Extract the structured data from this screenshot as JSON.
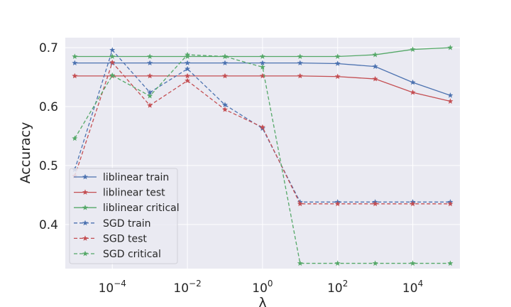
{
  "chart_data": {
    "type": "line",
    "title": "",
    "xlabel": "λ",
    "ylabel": "Accuracy",
    "xscale": "log",
    "x": [
      1e-05,
      0.0001,
      0.001,
      0.01,
      0.1,
      1,
      10,
      100,
      1000,
      10000,
      100000
    ],
    "xlim": [
      5.6e-06,
      180000
    ],
    "ylim": [
      0.325,
      0.717
    ],
    "x_ticks": [
      {
        "base": "10",
        "exp": "−4",
        "value": 0.0001
      },
      {
        "base": "10",
        "exp": "−2",
        "value": 0.01
      },
      {
        "base": "10",
        "exp": "0",
        "value": 1
      },
      {
        "base": "10",
        "exp": "2",
        "value": 100
      },
      {
        "base": "10",
        "exp": "4",
        "value": 10000
      }
    ],
    "y_ticks": [
      {
        "label": "0.4",
        "value": 0.4
      },
      {
        "label": "0.5",
        "value": 0.5
      },
      {
        "label": "0.6",
        "value": 0.6
      },
      {
        "label": "0.7",
        "value": 0.7
      }
    ],
    "grid": true,
    "legend_position": "lower-left",
    "background": "#eaeaf2",
    "series": [
      {
        "name": "liblinear train",
        "color": "#4c72b0",
        "linestyle": "solid",
        "marker": "star",
        "values": [
          0.674,
          0.674,
          0.674,
          0.674,
          0.674,
          0.674,
          0.674,
          0.673,
          0.668,
          0.641,
          0.619
        ]
      },
      {
        "name": "liblinear test",
        "color": "#c44e52",
        "linestyle": "solid",
        "marker": "star",
        "values": [
          0.652,
          0.652,
          0.652,
          0.652,
          0.652,
          0.652,
          0.652,
          0.651,
          0.647,
          0.624,
          0.609
        ]
      },
      {
        "name": "liblinear critical",
        "color": "#55a868",
        "linestyle": "solid",
        "marker": "star",
        "values": [
          0.685,
          0.685,
          0.685,
          0.685,
          0.685,
          0.685,
          0.685,
          0.685,
          0.688,
          0.697,
          0.7
        ]
      },
      {
        "name": "SGD train",
        "color": "#4c72b0",
        "linestyle": "dashed",
        "marker": "star",
        "values": [
          0.493,
          0.696,
          0.624,
          0.664,
          0.603,
          0.563,
          0.438,
          0.438,
          0.438,
          0.438,
          0.438
        ]
      },
      {
        "name": "SGD test",
        "color": "#c44e52",
        "linestyle": "dashed",
        "marker": "star",
        "values": [
          0.482,
          0.675,
          0.602,
          0.644,
          0.595,
          0.565,
          0.435,
          0.435,
          0.435,
          0.435,
          0.435
        ]
      },
      {
        "name": "SGD critical",
        "color": "#55a868",
        "linestyle": "dashed",
        "marker": "star",
        "values": [
          0.546,
          0.653,
          0.618,
          0.688,
          0.685,
          0.667,
          0.334,
          0.334,
          0.334,
          0.334,
          0.334
        ]
      }
    ]
  }
}
